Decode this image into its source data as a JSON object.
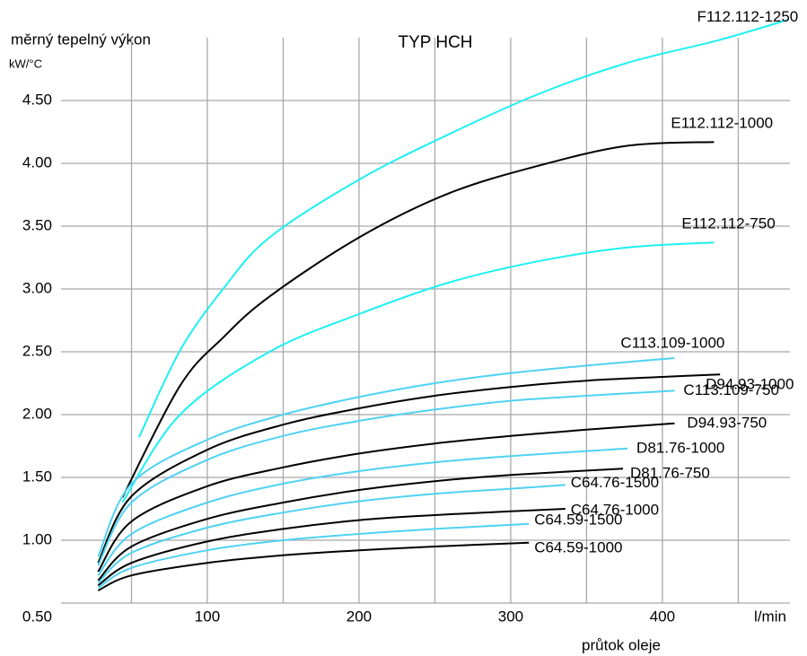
{
  "chart_data": {
    "type": "line",
    "title": "TYP HCH",
    "y_label": "měrný tepelný výkon",
    "y_unit": "kW/°C",
    "x_label": "průtok oleje",
    "x_unit": "l/min",
    "xlim": [
      0,
      490
    ],
    "xticks": [
      100,
      200,
      300,
      400
    ],
    "x_minor_grid": [
      50,
      150,
      250,
      350,
      450
    ],
    "ylim": [
      0.5,
      5.2
    ],
    "yticks": [
      {
        "value": 0.5,
        "label": "0.50"
      },
      {
        "value": 1,
        "label": "1.00"
      },
      {
        "value": 1.5,
        "label": "1.50"
      },
      {
        "value": 2,
        "label": "2.00"
      },
      {
        "value": 2.5,
        "label": "2.50"
      },
      {
        "value": 3,
        "label": "3.00"
      },
      {
        "value": 3.5,
        "label": "3.50"
      },
      {
        "value": 4,
        "label": "4.00"
      },
      {
        "value": 4.5,
        "label": "4.50"
      }
    ],
    "grid": true,
    "series": [
      {
        "name": "F112.112-1250",
        "color": "#1ef0f2",
        "x": [
          55,
          82,
          111,
          141,
          200,
          259,
          318,
          377,
          437,
          482
        ],
        "values": [
          1.82,
          2.51,
          3.01,
          3.41,
          3.87,
          4.23,
          4.55,
          4.8,
          4.98,
          5.14
        ]
      },
      {
        "name": "E112.112-1000",
        "color": "#000000",
        "x": [
          44,
          82,
          111,
          141,
          200,
          259,
          318,
          377,
          434
        ],
        "values": [
          1.34,
          2.23,
          2.62,
          2.94,
          3.41,
          3.76,
          3.98,
          4.14,
          4.17
        ]
      },
      {
        "name": "E112.112-750",
        "color": "#1ef0f2",
        "x": [
          44,
          82,
          141,
          200,
          259,
          318,
          377,
          434
        ],
        "values": [
          1.3,
          2.0,
          2.5,
          2.8,
          3.05,
          3.22,
          3.33,
          3.37
        ]
      },
      {
        "name": "C113.109-1000",
        "color": "#4fd2f2",
        "x": [
          28,
          50,
          100,
          150,
          200,
          250,
          300,
          350,
          408
        ],
        "values": [
          0.87,
          1.45,
          1.8,
          2.0,
          2.14,
          2.25,
          2.33,
          2.39,
          2.45
        ]
      },
      {
        "name": "D94.93-1000",
        "color": "#000000",
        "x": [
          28,
          50,
          100,
          150,
          200,
          250,
          300,
          350,
          400,
          438
        ],
        "values": [
          0.82,
          1.35,
          1.72,
          1.92,
          2.05,
          2.15,
          2.22,
          2.27,
          2.3,
          2.32
        ]
      },
      {
        "name": "C113.109-750",
        "color": "#4fd2f2",
        "x": [
          28,
          50,
          100,
          150,
          200,
          250,
          300,
          350,
          408
        ],
        "values": [
          0.8,
          1.3,
          1.64,
          1.83,
          1.95,
          2.04,
          2.11,
          2.15,
          2.19
        ]
      },
      {
        "name": "D94.93-750",
        "color": "#000000",
        "x": [
          28,
          50,
          100,
          150,
          200,
          250,
          300,
          350,
          408
        ],
        "values": [
          0.75,
          1.15,
          1.43,
          1.58,
          1.69,
          1.77,
          1.83,
          1.88,
          1.93
        ]
      },
      {
        "name": "D81.76-1000",
        "color": "#4fd2f2",
        "x": [
          28,
          50,
          100,
          150,
          200,
          250,
          300,
          377
        ],
        "values": [
          0.72,
          1.05,
          1.3,
          1.45,
          1.55,
          1.62,
          1.67,
          1.73
        ]
      },
      {
        "name": "D81.76-750",
        "color": "#000000",
        "x": [
          28,
          50,
          100,
          150,
          200,
          250,
          300,
          374
        ],
        "values": [
          0.68,
          0.95,
          1.17,
          1.3,
          1.4,
          1.47,
          1.52,
          1.57
        ]
      },
      {
        "name": "C64.76-1500",
        "color": "#4fd2f2",
        "x": [
          28,
          50,
          100,
          150,
          200,
          250,
          300,
          336
        ],
        "values": [
          0.66,
          0.9,
          1.1,
          1.22,
          1.31,
          1.37,
          1.41,
          1.44
        ]
      },
      {
        "name": "C64.76-1000",
        "color": "#000000",
        "x": [
          28,
          50,
          100,
          150,
          200,
          250,
          300,
          336
        ],
        "values": [
          0.64,
          0.82,
          0.99,
          1.09,
          1.16,
          1.2,
          1.23,
          1.25
        ]
      },
      {
        "name": "C64.59-1500",
        "color": "#4fd2f2",
        "x": [
          28,
          50,
          100,
          150,
          200,
          250,
          312
        ],
        "values": [
          0.62,
          0.78,
          0.92,
          1.0,
          1.05,
          1.09,
          1.13
        ]
      },
      {
        "name": "C64.59-1000",
        "color": "#000000",
        "x": [
          28,
          50,
          100,
          150,
          200,
          250,
          312
        ],
        "values": [
          0.6,
          0.72,
          0.82,
          0.88,
          0.92,
          0.95,
          0.98
        ]
      }
    ]
  }
}
